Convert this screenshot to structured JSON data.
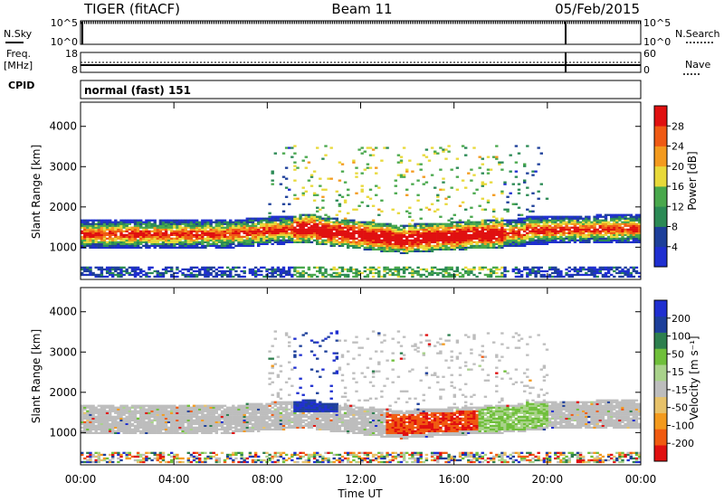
{
  "header": {
    "radar": "TIGER (fitACF)",
    "beam": "Beam 11",
    "date": "05/Feb/2015"
  },
  "panels": {
    "nsky_label": "N.Sky",
    "nsearch_label": "N.Search",
    "nsky_ticks": [
      "10^5",
      "10^0"
    ],
    "freq_label_1": "Freq.",
    "freq_label_2": "[MHz]",
    "freq_ticks": [
      "18",
      "8"
    ],
    "nave_label": "Nave",
    "nave_ticks": [
      "60",
      "0"
    ],
    "cpid_label": "CPID",
    "cpid_text": "normal (fast) 151"
  },
  "colors": {
    "power_scale": [
      "#1f2fd0",
      "#1d3f9a",
      "#2b8a55",
      "#49a84c",
      "#e8d93a",
      "#f39a1e",
      "#ef5a14",
      "#e01010"
    ],
    "velocity_scale": [
      "#e01010",
      "#f05a10",
      "#f39a1e",
      "#e7c26a",
      "#bdbdbd",
      "#a9d28b",
      "#6fbf3a",
      "#2d7f4e",
      "#1d3f9a",
      "#1f2fd0"
    ]
  },
  "chart_data": [
    {
      "type": "heatmap",
      "name": "power",
      "xlabel": "Time UT",
      "ylabel": "Slant Range [km]",
      "xlim": [
        0,
        24
      ],
      "ylim": [
        200,
        4600
      ],
      "yticks": [
        1000,
        2000,
        3000,
        4000
      ],
      "xticks": [
        "00:00",
        "04:00",
        "08:00",
        "12:00",
        "16:00",
        "20:00",
        "00:00"
      ],
      "colorbar": {
        "label": "Power [dB]",
        "ticks": [
          "4",
          "8",
          "12",
          "16",
          "20",
          "24",
          "28"
        ],
        "range": [
          0,
          32
        ]
      },
      "grid": false
    },
    {
      "type": "heatmap",
      "name": "velocity",
      "xlabel": "Time UT",
      "ylabel": "Slant Range [km]",
      "xlim": [
        0,
        24
      ],
      "ylim": [
        200,
        4600
      ],
      "yticks": [
        1000,
        2000,
        3000,
        4000
      ],
      "xticks": [
        "00:00",
        "04:00",
        "08:00",
        "12:00",
        "16:00",
        "20:00",
        "00:00"
      ],
      "colorbar": {
        "label": "Velocity [m s⁻¹]",
        "ticks": [
          "-200",
          "-100",
          "-50",
          "-15",
          "15",
          "50",
          "100",
          "200"
        ],
        "range": [
          -250,
          250
        ]
      },
      "grid": false
    }
  ]
}
